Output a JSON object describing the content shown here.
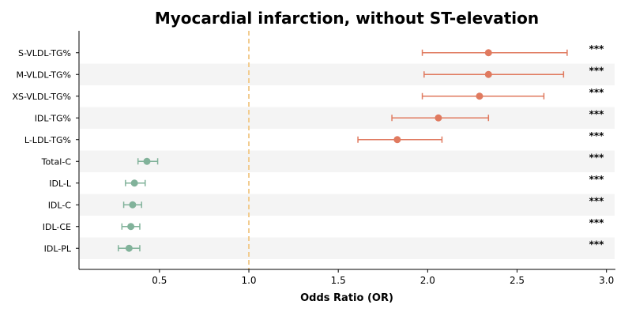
{
  "chart_data": {
    "type": "forest",
    "title": "Myocardial infarction, without ST-elevation",
    "xlabel": "Odds Ratio (OR)",
    "ylabel": "",
    "xlim": [
      0.05,
      3.05
    ],
    "xticks": [
      "0.5",
      "1.0",
      "1.5",
      "2.0",
      "2.5",
      "3.0"
    ],
    "reference_line": 1.0,
    "grid": false,
    "row_shading": "alternating",
    "colors": {
      "positive": "#e07a5f",
      "negative": "#81b29a",
      "reference": "#f2cc8f",
      "shading": "#f4f4f4"
    },
    "rows": [
      {
        "label": "S-VLDL-TG%",
        "or": 2.34,
        "ci_low": 1.97,
        "ci_high": 2.78,
        "significance": "***",
        "direction": "positive"
      },
      {
        "label": "M-VLDL-TG%",
        "or": 2.34,
        "ci_low": 1.98,
        "ci_high": 2.76,
        "significance": "***",
        "direction": "positive"
      },
      {
        "label": "XS-VLDL-TG%",
        "or": 2.29,
        "ci_low": 1.97,
        "ci_high": 2.65,
        "significance": "***",
        "direction": "positive"
      },
      {
        "label": "IDL-TG%",
        "or": 2.06,
        "ci_low": 1.8,
        "ci_high": 2.34,
        "significance": "***",
        "direction": "positive"
      },
      {
        "label": "L-LDL-TG%",
        "or": 1.83,
        "ci_low": 1.61,
        "ci_high": 2.08,
        "significance": "***",
        "direction": "positive"
      },
      {
        "label": "Total-C",
        "or": 0.43,
        "ci_low": 0.38,
        "ci_high": 0.49,
        "significance": "***",
        "direction": "negative"
      },
      {
        "label": "IDL-L",
        "or": 0.36,
        "ci_low": 0.31,
        "ci_high": 0.42,
        "significance": "***",
        "direction": "negative"
      },
      {
        "label": "IDL-C",
        "or": 0.35,
        "ci_low": 0.3,
        "ci_high": 0.4,
        "significance": "***",
        "direction": "negative"
      },
      {
        "label": "IDL-CE",
        "or": 0.34,
        "ci_low": 0.29,
        "ci_high": 0.39,
        "significance": "***",
        "direction": "negative"
      },
      {
        "label": "IDL-PL",
        "or": 0.33,
        "ci_low": 0.27,
        "ci_high": 0.39,
        "significance": "***",
        "direction": "negative"
      }
    ]
  }
}
